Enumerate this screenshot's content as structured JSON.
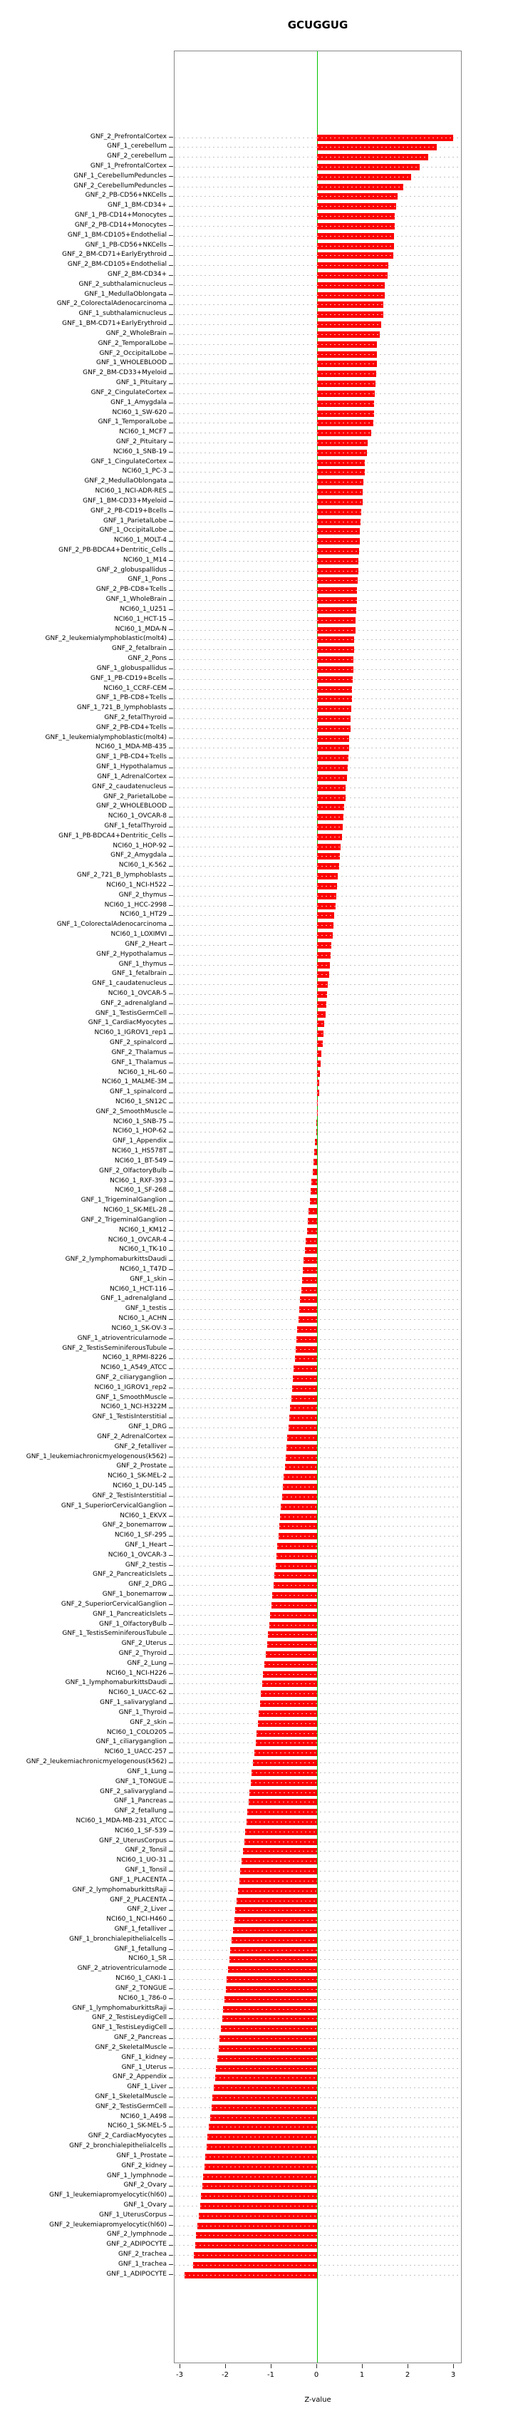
{
  "title": "GCUGGUG",
  "x_axis": {
    "label": "Z-value",
    "ticks": [
      "-3",
      "-2",
      "-1",
      "0",
      "1",
      "2",
      "3"
    ],
    "min": -3,
    "max": 3
  },
  "colors": {
    "bar": "#fb0000",
    "zero_line": "#00c400",
    "grid": "#c3c3c3",
    "frame": "#878787"
  },
  "chart_data": {
    "type": "bar",
    "orientation": "horizontal",
    "title": "GCUGGUG",
    "xlabel": "Z-value",
    "xlim": [
      -3,
      3
    ],
    "legend": "none",
    "grid": "dotted-horizontal",
    "categories": [
      "GNF_2_PrefrontalCortex",
      "GNF_1_cerebellum",
      "GNF_2_cerebellum",
      "GNF_1_PrefrontalCortex",
      "GNF_1_CerebellumPeduncles",
      "GNF_2_CerebellumPeduncles",
      "GNF_2_PB-CD56+NKCells",
      "GNF_1_BM-CD34+",
      "GNF_1_PB-CD14+Monocytes",
      "GNF_2_PB-CD14+Monocytes",
      "GNF_1_BM-CD105+Endothelial",
      "GNF_1_PB-CD56+NKCells",
      "GNF_2_BM-CD71+EarlyErythroid",
      "GNF_2_BM-CD105+Endothelial",
      "GNF_2_BM-CD34+",
      "GNF_2_subthalamicnucleus",
      "GNF_1_MedullaOblongata",
      "GNF_2_ColorectalAdenocarcinoma",
      "GNF_1_subthalamicnucleus",
      "GNF_1_BM-CD71+EarlyErythroid",
      "GNF_2_WholeBrain",
      "GNF_2_TemporalLobe",
      "GNF_2_OccipitalLobe",
      "GNF_1_WHOLEBLOOD",
      "GNF_2_BM-CD33+Myeloid",
      "GNF_1_Pituitary",
      "GNF_2_CingulateCortex",
      "GNF_1_Amygdala",
      "NCI60_1_SW-620",
      "GNF_1_TemporalLobe",
      "NCI60_1_MCF7",
      "GNF_2_Pituitary",
      "NCI60_1_SNB-19",
      "GNF_1_CingulateCortex",
      "NCI60_1_PC-3",
      "GNF_2_MedullaOblongata",
      "NCI60_1_NCI-ADR-RES",
      "GNF_1_BM-CD33+Myeloid",
      "GNF_2_PB-CD19+Bcells",
      "GNF_1_ParietalLobe",
      "GNF_1_OccipitalLobe",
      "NCI60_1_MOLT-4",
      "GNF_2_PB-BDCA4+Dentritic_Cells",
      "NCI60_1_M14",
      "GNF_2_globuspallidus",
      "GNF_1_Pons",
      "GNF_2_PB-CD8+Tcells",
      "GNF_1_WholeBrain",
      "NCI60_1_U251",
      "NCI60_1_HCT-15",
      "NCI60_1_MDA-N",
      "GNF_2_leukemialymphoblastic(molt4)",
      "GNF_2_fetalbrain",
      "GNF_2_Pons",
      "GNF_1_globuspallidus",
      "GNF_1_PB-CD19+Bcells",
      "NCI60_1_CCRF-CEM",
      "GNF_1_PB-CD8+Tcells",
      "GNF_1_721_B_lymphoblasts",
      "GNF_2_fetalThyroid",
      "GNF_2_PB-CD4+Tcells",
      "GNF_1_leukemialymphoblastic(molt4)",
      "NCI60_1_MDA-MB-435",
      "GNF_1_PB-CD4+Tcells",
      "GNF_1_Hypothalamus",
      "GNF_1_AdrenalCortex",
      "GNF_2_caudatenucleus",
      "GNF_2_ParietalLobe",
      "GNF_2_WHOLEBLOOD",
      "NCI60_1_OVCAR-8",
      "GNF_1_fetalThyroid",
      "GNF_1_PB-BDCA4+Dentritic_Cells",
      "NCI60_1_HOP-92",
      "GNF_2_Amygdala",
      "NCI60_1_K-562",
      "GNF_2_721_B_lymphoblasts",
      "NCI60_1_NCI-H522",
      "GNF_2_thymus",
      "NCI60_1_HCC-2998",
      "NCI60_1_HT29",
      "GNF_1_ColorectalAdenocarcinoma",
      "NCI60_1_LOXIMVI",
      "GNF_2_Heart",
      "GNF_2_Hypothalamus",
      "GNF_1_thymus",
      "GNF_1_fetalbrain",
      "GNF_1_caudatenucleus",
      "NCI60_1_OVCAR-5",
      "GNF_2_adrenalgland",
      "GNF_1_TestisGermCell",
      "GNF_1_CardiacMyocytes",
      "NCI60_1_IGROV1_rep1",
      "GNF_2_spinalcord",
      "GNF_2_Thalamus",
      "GNF_1_Thalamus",
      "NCI60_1_HL-60",
      "NCI60_1_MALME-3M",
      "GNF_1_spinalcord",
      "NCI60_1_SN12C",
      "GNF_2_SmoothMuscle",
      "NCI60_1_SNB-75",
      "NCI60_1_HOP-62",
      "GNF_1_Appendix",
      "NCI60_1_HS578T",
      "NCI60_1_BT-549",
      "GNF_2_OlfactoryBulb",
      "NCI60_1_RXF-393",
      "NCI60_1_SF-268",
      "GNF_1_TrigeminalGanglion",
      "NCI60_1_SK-MEL-28",
      "GNF_2_TrigeminalGanglion",
      "NCI60_1_KM12",
      "NCI60_1_OVCAR-4",
      "NCI60_1_TK-10",
      "GNF_2_lymphomaburkittsDaudi",
      "NCI60_1_T47D",
      "GNF_1_skin",
      "NCI60_1_HCT-116",
      "GNF_1_adrenalgland",
      "GNF_1_testis",
      "NCI60_1_ACHN",
      "NCI60_1_SK-OV-3",
      "GNF_1_atrioventricularnode",
      "GNF_2_TestisSeminiferousTubule",
      "NCI60_1_RPMI-8226",
      "NCI60_1_A549_ATCC",
      "GNF_2_ciliaryganglion",
      "NCI60_1_IGROV1_rep2",
      "GNF_1_SmoothMuscle",
      "NCI60_1_NCI-H322M",
      "GNF_1_TestisInterstitial",
      "GNF_1_DRG",
      "GNF_2_AdrenalCortex",
      "GNF_2_fetalliver",
      "GNF_1_leukemiachronicmyelogenous(k562)",
      "GNF_2_Prostate",
      "NCI60_1_SK-MEL-2",
      "NCI60_1_DU-145",
      "GNF_2_TestisInterstitial",
      "GNF_1_SuperiorCervicalGanglion",
      "NCI60_1_EKVX",
      "GNF_2_bonemarrow",
      "NCI60_1_SF-295",
      "GNF_1_Heart",
      "NCI60_1_OVCAR-3",
      "GNF_2_testis",
      "GNF_2_PancreaticIslets",
      "GNF_2_DRG",
      "GNF_1_bonemarrow",
      "GNF_2_SuperiorCervicalGanglion",
      "GNF_1_PancreaticIslets",
      "GNF_1_OlfactoryBulb",
      "GNF_1_TestisSeminiferousTubule",
      "GNF_2_Uterus",
      "GNF_2_Thyroid",
      "GNF_2_Lung",
      "NCI60_1_NCI-H226",
      "GNF_1_lymphomaburkittsDaudi",
      "NCI60_1_UACC-62",
      "GNF_1_salivarygland",
      "GNF_1_Thyroid",
      "GNF_2_skin",
      "NCI60_1_COLO205",
      "GNF_1_ciliaryganglion",
      "NCI60_1_UACC-257",
      "GNF_2_leukemiachronicmyelogenous(k562)",
      "GNF_1_Lung",
      "GNF_1_TONGUE",
      "GNF_2_salivarygland",
      "GNF_1_Pancreas",
      "GNF_2_fetallung",
      "NCI60_1_MDA-MB-231_ATCC",
      "NCI60_1_SF-539",
      "GNF_2_UterusCorpus",
      "GNF_2_Tonsil",
      "NCI60_1_UO-31",
      "GNF_1_Tonsil",
      "GNF_1_PLACENTA",
      "GNF_2_lymphomaburkittsRaji",
      "GNF_2_PLACENTA",
      "GNF_2_Liver",
      "NCI60_1_NCI-H460",
      "GNF_1_fetalliver",
      "GNF_1_bronchialepithelialcells",
      "GNF_1_fetallung",
      "NCI60_1_SR",
      "GNF_2_atrioventricularnode",
      "NCI60_1_CAKI-1",
      "GNF_2_TONGUE",
      "NCI60_1_786-0",
      "GNF_1_lymphomaburkittsRaji",
      "GNF_2_TestisLeydigCell",
      "GNF_1_TestisLeydigCell",
      "GNF_2_Pancreas",
      "GNF_2_SkeletalMuscle",
      "GNF_1_kidney",
      "GNF_1_Uterus",
      "GNF_2_Appendix",
      "GNF_1_Liver",
      "GNF_1_SkeletalMuscle",
      "GNF_2_TestisGermCell",
      "NCI60_1_A498",
      "NCI60_1_SK-MEL-5",
      "GNF_2_CardiacMyocytes",
      "GNF_2_bronchialepithelialcells",
      "GNF_1_Prostate",
      "GNF_2_kidney",
      "GNF_1_lymphnode",
      "GNF_2_Ovary",
      "GNF_1_leukemiapromyelocytic(hl60)",
      "GNF_1_Ovary",
      "GNF_1_UterusCorpus",
      "GNF_2_leukemiapromyelocytic(hl60)",
      "GNF_2_lymphnode",
      "GNF_2_ADIPOCYTE",
      "GNF_2_trachea",
      "GNF_1_trachea",
      "GNF_1_ADIPOCYTE"
    ],
    "values": [
      2.98,
      2.63,
      2.44,
      2.25,
      2.07,
      1.89,
      1.77,
      1.74,
      1.71,
      1.7,
      1.69,
      1.68,
      1.67,
      1.56,
      1.55,
      1.49,
      1.48,
      1.46,
      1.46,
      1.4,
      1.37,
      1.32,
      1.31,
      1.31,
      1.29,
      1.28,
      1.26,
      1.25,
      1.25,
      1.24,
      1.18,
      1.11,
      1.1,
      1.05,
      1.04,
      1.02,
      1.0,
      1.0,
      0.97,
      0.95,
      0.94,
      0.93,
      0.92,
      0.91,
      0.9,
      0.89,
      0.88,
      0.87,
      0.86,
      0.85,
      0.84,
      0.82,
      0.81,
      0.8,
      0.79,
      0.78,
      0.77,
      0.76,
      0.75,
      0.74,
      0.73,
      0.71,
      0.7,
      0.68,
      0.67,
      0.65,
      0.63,
      0.62,
      0.6,
      0.58,
      0.56,
      0.54,
      0.52,
      0.5,
      0.48,
      0.46,
      0.44,
      0.42,
      0.4,
      0.38,
      0.36,
      0.34,
      0.32,
      0.3,
      0.28,
      0.26,
      0.24,
      0.22,
      0.2,
      0.18,
      0.16,
      0.14,
      0.12,
      0.1,
      0.08,
      0.06,
      0.05,
      0.04,
      0.02,
      0.01,
      -0.01,
      -0.02,
      -0.04,
      -0.06,
      -0.08,
      -0.1,
      -0.12,
      -0.14,
      -0.16,
      -0.18,
      -0.2,
      -0.22,
      -0.25,
      -0.27,
      -0.29,
      -0.31,
      -0.33,
      -0.35,
      -0.37,
      -0.39,
      -0.41,
      -0.43,
      -0.45,
      -0.47,
      -0.49,
      -0.51,
      -0.53,
      -0.55,
      -0.57,
      -0.59,
      -0.61,
      -0.63,
      -0.65,
      -0.67,
      -0.69,
      -0.71,
      -0.73,
      -0.75,
      -0.77,
      -0.79,
      -0.81,
      -0.83,
      -0.85,
      -0.87,
      -0.89,
      -0.91,
      -0.94,
      -0.96,
      -0.98,
      -1.0,
      -1.03,
      -1.05,
      -1.08,
      -1.1,
      -1.13,
      -1.15,
      -1.18,
      -1.2,
      -1.23,
      -1.25,
      -1.28,
      -1.3,
      -1.33,
      -1.35,
      -1.38,
      -1.4,
      -1.43,
      -1.45,
      -1.48,
      -1.5,
      -1.53,
      -1.55,
      -1.58,
      -1.6,
      -1.63,
      -1.66,
      -1.68,
      -1.71,
      -1.74,
      -1.76,
      -1.79,
      -1.82,
      -1.84,
      -1.87,
      -1.9,
      -1.92,
      -1.95,
      -1.98,
      -2.0,
      -2.03,
      -2.06,
      -2.08,
      -2.11,
      -2.14,
      -2.16,
      -2.19,
      -2.22,
      -2.24,
      -2.27,
      -2.3,
      -2.32,
      -2.35,
      -2.37,
      -2.4,
      -2.42,
      -2.45,
      -2.47,
      -2.5,
      -2.52,
      -2.55,
      -2.57,
      -2.6,
      -2.62,
      -2.65,
      -2.67,
      -2.7,
      -2.72,
      -2.9
    ]
  }
}
